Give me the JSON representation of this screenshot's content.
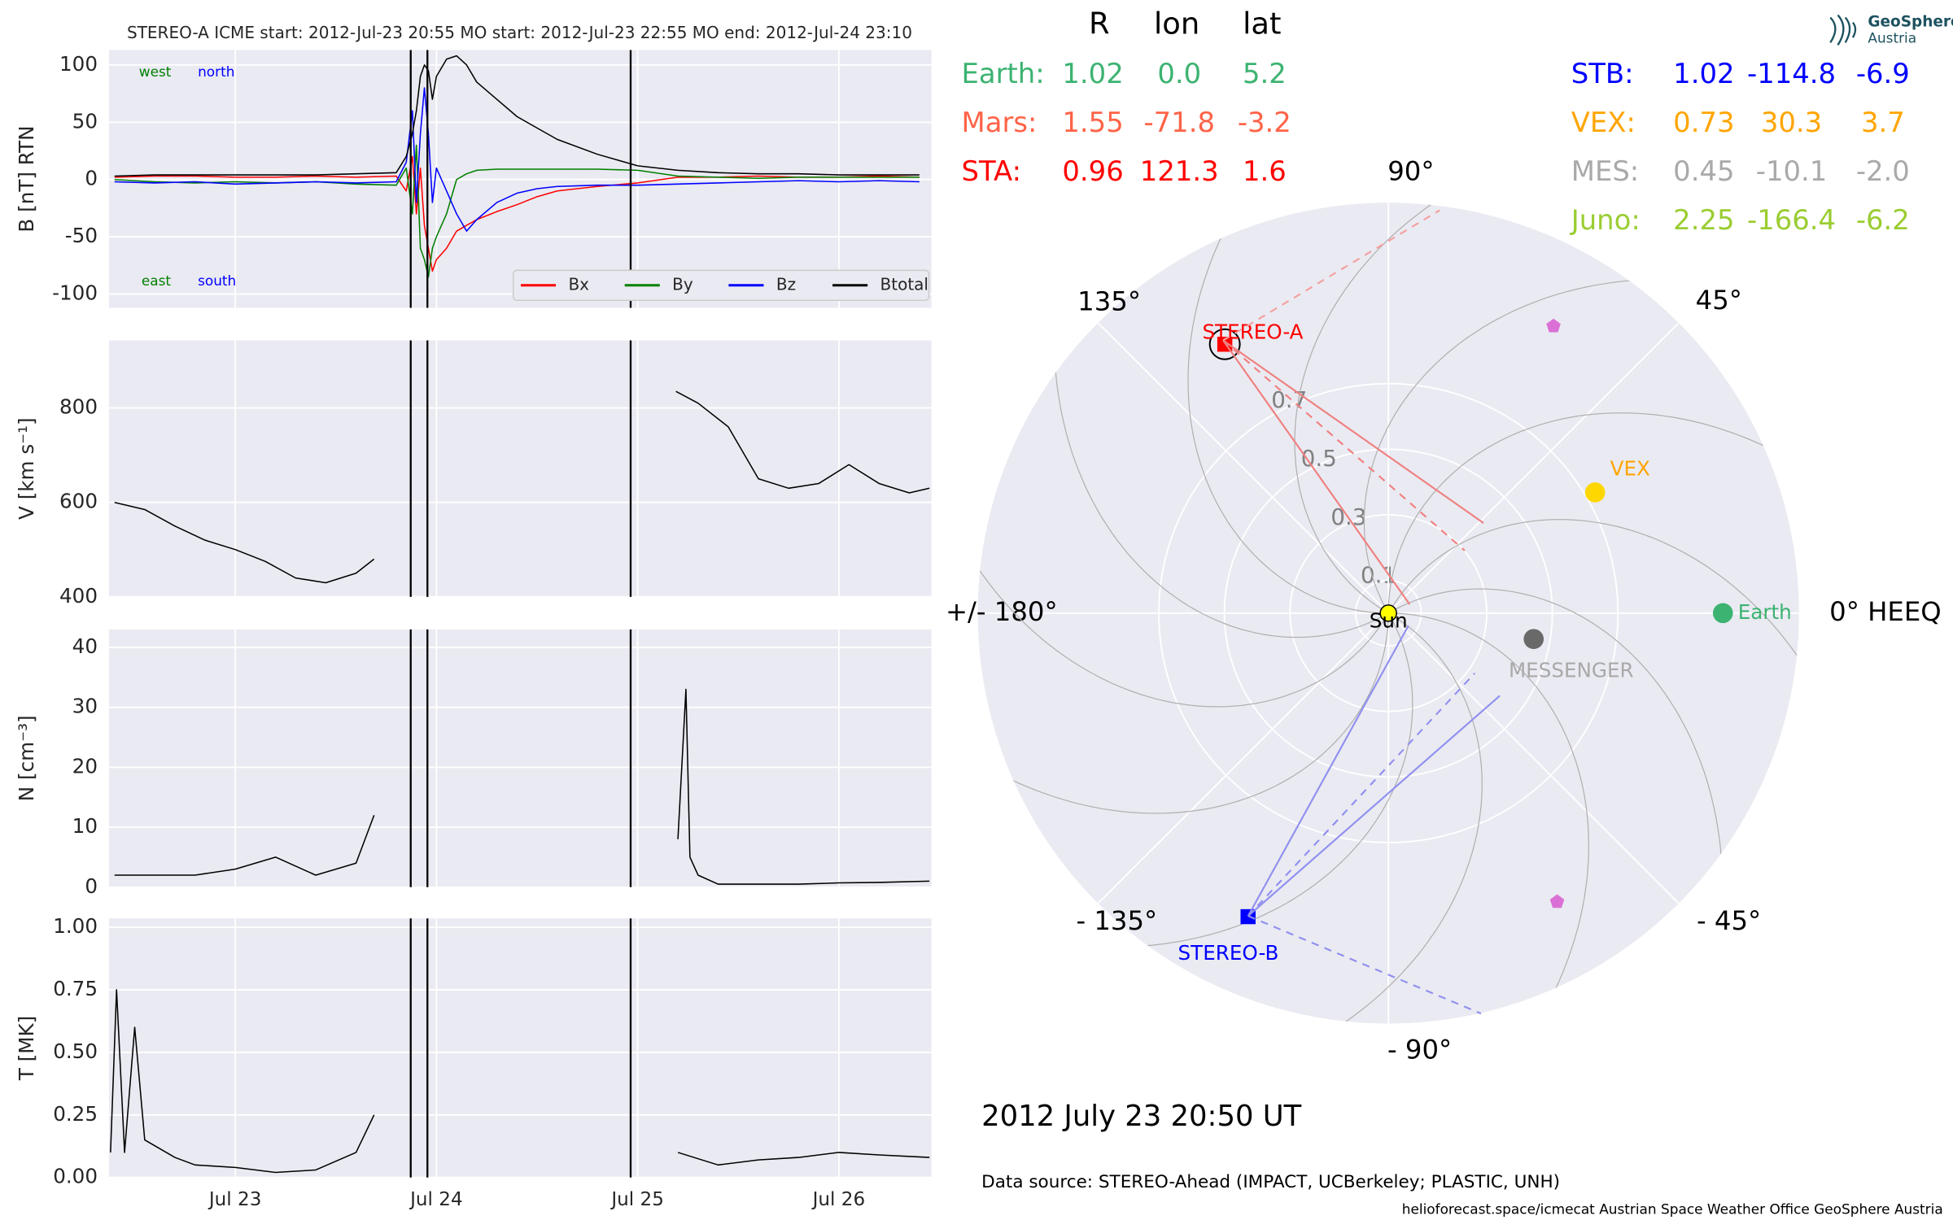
{
  "chart_data": [
    {
      "type": "line",
      "title": "STEREO-A    ICME start: 2012-Jul-23 20:55   MO start: 2012-Jul-23 22:55   MO end: 2012-Jul-24 23:10",
      "ylabel": "B [nT] RTN",
      "x": [
        22.4,
        22.6,
        22.8,
        23.0,
        23.2,
        23.4,
        23.6,
        23.8,
        23.85,
        23.88,
        23.9,
        23.92,
        23.94,
        23.96,
        23.98,
        24.0,
        24.05,
        24.1,
        24.15,
        24.2,
        24.3,
        24.4,
        24.5,
        24.6,
        24.8,
        25.0,
        25.2,
        25.4,
        25.6,
        25.8,
        26.0,
        26.2,
        26.4
      ],
      "series": [
        {
          "name": "Bx",
          "color": "#ff0000",
          "values": [
            2,
            3,
            3,
            2,
            2,
            3,
            2,
            3,
            -10,
            20,
            -30,
            10,
            -40,
            -60,
            -80,
            -70,
            -60,
            -45,
            -40,
            -35,
            -28,
            -22,
            -15,
            -10,
            -6,
            -3,
            2,
            2,
            3,
            2,
            2,
            3,
            2
          ]
        },
        {
          "name": "By",
          "color": "#008000",
          "values": [
            0,
            -2,
            -3,
            -2,
            -3,
            -2,
            -4,
            -5,
            10,
            -30,
            30,
            -60,
            -70,
            -85,
            -60,
            -50,
            -30,
            0,
            5,
            8,
            9,
            9,
            9,
            9,
            9,
            8,
            3,
            2,
            1,
            2,
            2,
            2,
            2
          ]
        },
        {
          "name": "Bz",
          "color": "#0000ff",
          "values": [
            -2,
            -3,
            -2,
            -4,
            -3,
            -2,
            -3,
            -2,
            15,
            60,
            -20,
            40,
            80,
            40,
            -20,
            10,
            -10,
            -30,
            -45,
            -35,
            -20,
            -12,
            -8,
            -6,
            -5,
            -5,
            -4,
            -3,
            -2,
            -1,
            -2,
            -1,
            -2
          ]
        },
        {
          "name": "Btotal",
          "color": "#000000",
          "values": [
            3,
            4,
            4,
            4,
            4,
            4,
            5,
            6,
            20,
            40,
            60,
            90,
            100,
            95,
            70,
            90,
            105,
            108,
            100,
            85,
            70,
            55,
            45,
            35,
            22,
            12,
            8,
            6,
            5,
            5,
            4,
            4,
            4
          ]
        }
      ],
      "xlim": [
        22.372,
        26.46
      ],
      "xticks": [
        23,
        24,
        25,
        26
      ],
      "ylim": [
        -112,
        113
      ],
      "yticks": [
        -100,
        -50,
        0,
        50,
        100
      ],
      "grid": true,
      "legend": "lower right",
      "vlines": [
        23.872,
        23.955,
        24.965
      ],
      "annotations": [
        {
          "text": "west",
          "color": "#008000"
        },
        {
          "text": "north",
          "color": "#0000ff"
        },
        {
          "text": "east",
          "color": "#008000"
        },
        {
          "text": "south",
          "color": "#0000ff"
        }
      ]
    },
    {
      "type": "line",
      "ylabel": "V [km s⁻¹]",
      "color": "#000000",
      "x": [
        22.4,
        22.55,
        22.7,
        22.85,
        23.0,
        23.15,
        23.3,
        23.45,
        23.6,
        23.69,
        23.8,
        25.19,
        25.3,
        25.45,
        25.6,
        25.75,
        25.9,
        26.05,
        26.2,
        26.35,
        26.45
      ],
      "values": [
        600,
        585,
        550,
        520,
        500,
        475,
        440,
        430,
        450,
        480,
        null,
        835,
        810,
        760,
        650,
        630,
        640,
        680,
        640,
        620,
        630
      ],
      "xlim": [
        22.372,
        26.46
      ],
      "xticks": [
        23,
        24,
        25,
        26
      ],
      "ylim": [
        400,
        943
      ],
      "yticks": [
        400,
        600,
        800
      ],
      "grid": true,
      "vlines": [
        23.872,
        23.955,
        24.965
      ]
    },
    {
      "type": "line",
      "ylabel": "N [cm⁻³]",
      "color": "#000000",
      "x": [
        22.4,
        22.6,
        22.8,
        23.0,
        23.2,
        23.4,
        23.6,
        23.69,
        23.8,
        25.2,
        25.24,
        25.26,
        25.3,
        25.4,
        25.6,
        25.8,
        26.0,
        26.2,
        26.45
      ],
      "values": [
        2,
        2,
        2,
        3,
        5,
        2,
        4,
        12,
        null,
        8,
        33,
        5,
        2,
        0.5,
        0.5,
        0.5,
        0.7,
        0.8,
        1
      ],
      "xlim": [
        22.372,
        26.46
      ],
      "xticks": [
        23,
        24,
        25,
        26
      ],
      "ylim": [
        0,
        43
      ],
      "yticks": [
        0,
        10,
        20,
        30,
        40
      ],
      "grid": true,
      "vlines": [
        23.872,
        23.955,
        24.965
      ]
    },
    {
      "type": "line",
      "ylabel": "T [MK]",
      "color": "#000000",
      "x": [
        22.38,
        22.41,
        22.45,
        22.5,
        22.55,
        22.7,
        22.8,
        23.0,
        23.2,
        23.4,
        23.6,
        23.69,
        23.8,
        25.2,
        25.4,
        25.6,
        25.8,
        26.0,
        26.2,
        26.45
      ],
      "values": [
        0.1,
        0.75,
        0.1,
        0.6,
        0.15,
        0.08,
        0.05,
        0.04,
        0.02,
        0.03,
        0.1,
        0.25,
        null,
        0.1,
        0.05,
        0.07,
        0.08,
        0.1,
        0.09,
        0.08
      ],
      "xlim": [
        22.372,
        26.46
      ],
      "xticks": [
        {
          "value": 23,
          "label": "Jul 23"
        },
        {
          "value": 24,
          "label": "Jul 24"
        },
        {
          "value": 25,
          "label": "Jul 25"
        },
        {
          "value": 26,
          "label": "Jul 26"
        }
      ],
      "ylim": [
        0,
        1.035
      ],
      "yticks": [
        {
          "value": 0,
          "label": "0.00"
        },
        {
          "value": 0.25,
          "label": "0.25"
        },
        {
          "value": 0.5,
          "label": "0.50"
        },
        {
          "value": 0.75,
          "label": "0.75"
        },
        {
          "value": 1,
          "label": "1.00"
        }
      ],
      "grid": true,
      "vlines": [
        23.872,
        23.955,
        24.965
      ]
    },
    {
      "type": "polar",
      "rlim": [
        0,
        1.252
      ],
      "rticks": [
        0.1,
        0.3,
        0.5,
        0.7
      ],
      "thetaticks": [
        {
          "value": 0,
          "label": "0° HEEQ"
        },
        {
          "value": 45,
          "label": "45°"
        },
        {
          "value": 90,
          "label": "90°"
        },
        {
          "value": 135,
          "label": "135°"
        },
        {
          "value": 180,
          "label": "+/- 180°"
        },
        {
          "value": -135,
          "label": "- 135°"
        },
        {
          "value": -90,
          "label": "- 90°"
        },
        {
          "value": -45,
          "label": "- 45°"
        }
      ],
      "bodies": [
        {
          "name": "Sun",
          "color": "#ffff00",
          "label_color": "#000000",
          "marker": "circle",
          "r": 0,
          "lon": 0
        },
        {
          "name": "STEREO-A",
          "color": "#ff0000",
          "label_color": "#ff0000",
          "marker": "square",
          "r": 0.96,
          "lon": 121.3
        },
        {
          "name": "STEREO-B",
          "color": "#0000ff",
          "label_color": "#0000ff",
          "marker": "square",
          "r": 1.02,
          "lon": -114.8
        },
        {
          "name": "VEX",
          "color": "#ffd700",
          "label_color": "#ffa500",
          "marker": "circle",
          "r": 0.73,
          "lon": 30.3
        },
        {
          "name": "Earth",
          "color": "#3cb371",
          "label_color": "#3cb371",
          "marker": "circle",
          "r": 1.02,
          "lon": 0.0
        },
        {
          "name": "MESSENGER",
          "color": "#696969",
          "label_color": "#a9a9a9",
          "marker": "circle",
          "r": 0.45,
          "lon": -10.1
        }
      ],
      "markers": {
        "color": "#da70d6",
        "r": [
          1.01,
          1.02
        ],
        "lon": [
          60.1,
          -59.7
        ]
      }
    }
  ],
  "positions": {
    "columns": [
      "R",
      "lon",
      "lat"
    ],
    "left": [
      {
        "name": "Earth:",
        "color": "#3cb371",
        "cells": [
          "1.02",
          "0.0",
          "5.2"
        ]
      },
      {
        "name": "Mars:",
        "color": "#ff6347",
        "cells": [
          "1.55",
          "-71.8",
          "-3.2"
        ]
      },
      {
        "name": "STA:",
        "color": "#ff0000",
        "cells": [
          "0.96",
          "121.3",
          "1.6"
        ]
      }
    ],
    "right": [
      {
        "name": "STB:",
        "color": "#0000ff",
        "cells": [
          "1.02",
          "-114.8",
          "-6.9"
        ]
      },
      {
        "name": "VEX:",
        "color": "#ffa500",
        "cells": [
          "0.73",
          "30.3",
          "3.7"
        ]
      },
      {
        "name": "MES:",
        "color": "#a9a9a9",
        "cells": [
          "0.45",
          "-10.1",
          "-2.0"
        ]
      },
      {
        "name": "Juno:",
        "color": "#9acd32",
        "cells": [
          "2.25",
          "-166.4",
          "-6.2"
        ]
      }
    ]
  },
  "time_label": "2012 July 23  20:50 UT",
  "source": "Data source: STEREO-Ahead (IMPACT, UCBerkeley; PLASTIC, UNH)",
  "footer": "helioforecast.space/icmecat   Austrian Space Weather Office   GeoSphere Austria",
  "logo": [
    "GeoSphere",
    "Austria"
  ]
}
